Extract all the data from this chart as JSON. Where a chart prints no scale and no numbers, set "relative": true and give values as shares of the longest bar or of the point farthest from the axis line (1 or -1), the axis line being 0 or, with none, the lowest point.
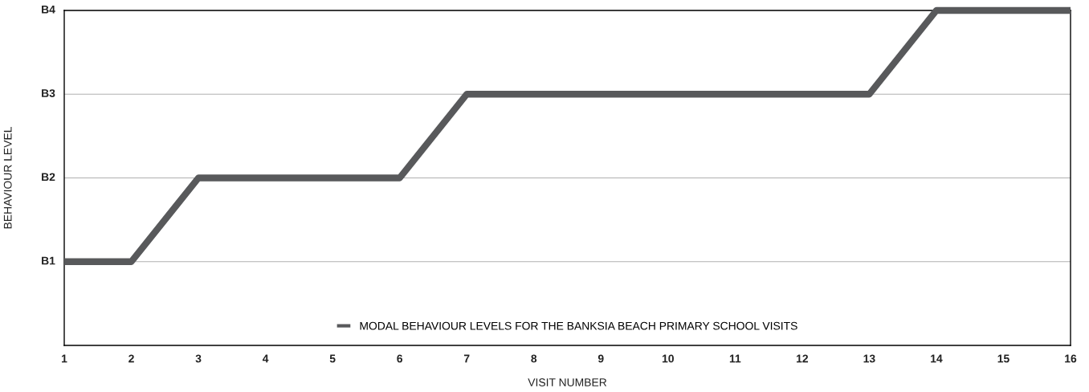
{
  "chart_data": {
    "type": "line",
    "xlabel": "VISIT NUMBER",
    "ylabel": "BEHAVIOUR LEVEL",
    "x": [
      1,
      2,
      3,
      4,
      5,
      6,
      7,
      8,
      9,
      10,
      11,
      12,
      13,
      14,
      15,
      16
    ],
    "series": [
      {
        "name": "MODAL BEHAVIOUR LEVELS FOR THE BANKSIA BEACH PRIMARY SCHOOL VISITS",
        "color": "#58595b",
        "values": [
          0.25,
          0.25,
          0.5,
          0.5,
          0.5,
          0.5,
          0.75,
          0.75,
          0.75,
          0.75,
          0.75,
          0.75,
          0.75,
          1,
          1,
          1
        ]
      }
    ],
    "relative": true,
    "xlim": [
      1,
      16
    ],
    "xticks": [
      1,
      2,
      3,
      4,
      5,
      6,
      7,
      8,
      9,
      10,
      11,
      12,
      13,
      14,
      15,
      16
    ],
    "ref_lines": [
      {
        "axis": "y",
        "value": 0.25,
        "label": "B1",
        "color": "#b0b0b0"
      },
      {
        "axis": "y",
        "value": 0.5,
        "label": "B2",
        "color": "#b0b0b0"
      },
      {
        "axis": "y",
        "value": 0.75,
        "label": "B3",
        "color": "#b0b0b0"
      },
      {
        "axis": "y",
        "value": 1,
        "label": "B4",
        "color": "#b0b0b0"
      }
    ],
    "legend": "bottom",
    "marker": "none",
    "line_style": "solid"
  }
}
